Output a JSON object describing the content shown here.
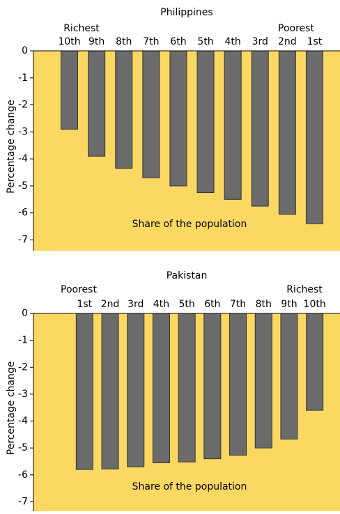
{
  "chart_data": [
    {
      "type": "bar",
      "title": "Philippines",
      "left_label": "Richest",
      "right_label": "Poorest",
      "ylabel": "Percentage change",
      "annotation": "Share of the population",
      "categories": [
        "10th",
        "9th",
        "8th",
        "7th",
        "6th",
        "5th",
        "4th",
        "3rd",
        "2nd",
        "1st"
      ],
      "values": [
        -2.9,
        -3.9,
        -4.35,
        -4.7,
        -5.0,
        -5.25,
        -5.5,
        -5.75,
        -6.05,
        -6.4
      ],
      "color": "#6b6b6b",
      "background": "#fbd862",
      "ylim": [
        -7.4,
        0
      ],
      "yticks": [
        0,
        -1,
        -2,
        -3,
        -4,
        -5,
        -6,
        -7
      ]
    },
    {
      "type": "bar",
      "title": "Pakistan",
      "left_label": "Poorest",
      "right_label": "Richest",
      "ylabel": "Percentage change",
      "annotation": "Share of the population",
      "categories": [
        "1st",
        "2nd",
        "3rd",
        "4th",
        "5th",
        "6th",
        "7th",
        "8th",
        "9th",
        "10th"
      ],
      "values": [
        -5.8,
        -5.78,
        -5.7,
        -5.55,
        -5.52,
        -5.4,
        -5.27,
        -5.0,
        -4.67,
        -3.6
      ],
      "color": "#6b6b6b",
      "background": "#fbd862",
      "ylim": [
        -7.35,
        0
      ],
      "yticks": [
        0,
        -1,
        -2,
        -3,
        -4,
        -5,
        -6,
        -7
      ]
    }
  ]
}
